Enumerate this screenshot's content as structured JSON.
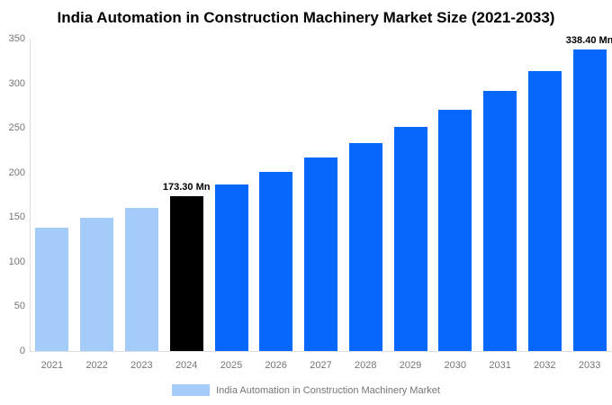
{
  "chart_data": {
    "type": "bar",
    "title": "India Automation in Construction Machinery Market Size (2021-2033)",
    "categories": [
      "2021",
      "2022",
      "2023",
      "2024",
      "2025",
      "2026",
      "2027",
      "2028",
      "2029",
      "2030",
      "2031",
      "2032",
      "2033"
    ],
    "values": [
      138.6,
      149.3,
      160.9,
      173.3,
      186.7,
      201.1,
      216.6,
      233.3,
      251.3,
      270.7,
      291.6,
      314.1,
      338.4
    ],
    "bar_colors": [
      "#A3CCFB",
      "#A3CCFB",
      "#A3CCFB",
      "#000000",
      "#0667FD",
      "#0667FD",
      "#0667FD",
      "#0667FD",
      "#0667FD",
      "#0667FD",
      "#0667FD",
      "#0667FD",
      "#0667FD"
    ],
    "ylim": [
      0,
      350
    ],
    "yticks": [
      0,
      50,
      100,
      150,
      200,
      250,
      300,
      350
    ],
    "xlabel": "",
    "ylabel": "",
    "grid": false,
    "legend": {
      "label": "India Automation in Construction Machinery Market",
      "position": "bottom",
      "swatch_color": "#A3CCFB"
    },
    "annotations": [
      {
        "category": "2024",
        "text": "173.30 Mn"
      },
      {
        "category": "2033",
        "text": "338.40 Mn"
      }
    ],
    "colors": {
      "axis_text": "#757575",
      "axis_line": "#DDDDDD",
      "annotation_text": "#000000",
      "background": "#FFFFFF"
    }
  }
}
